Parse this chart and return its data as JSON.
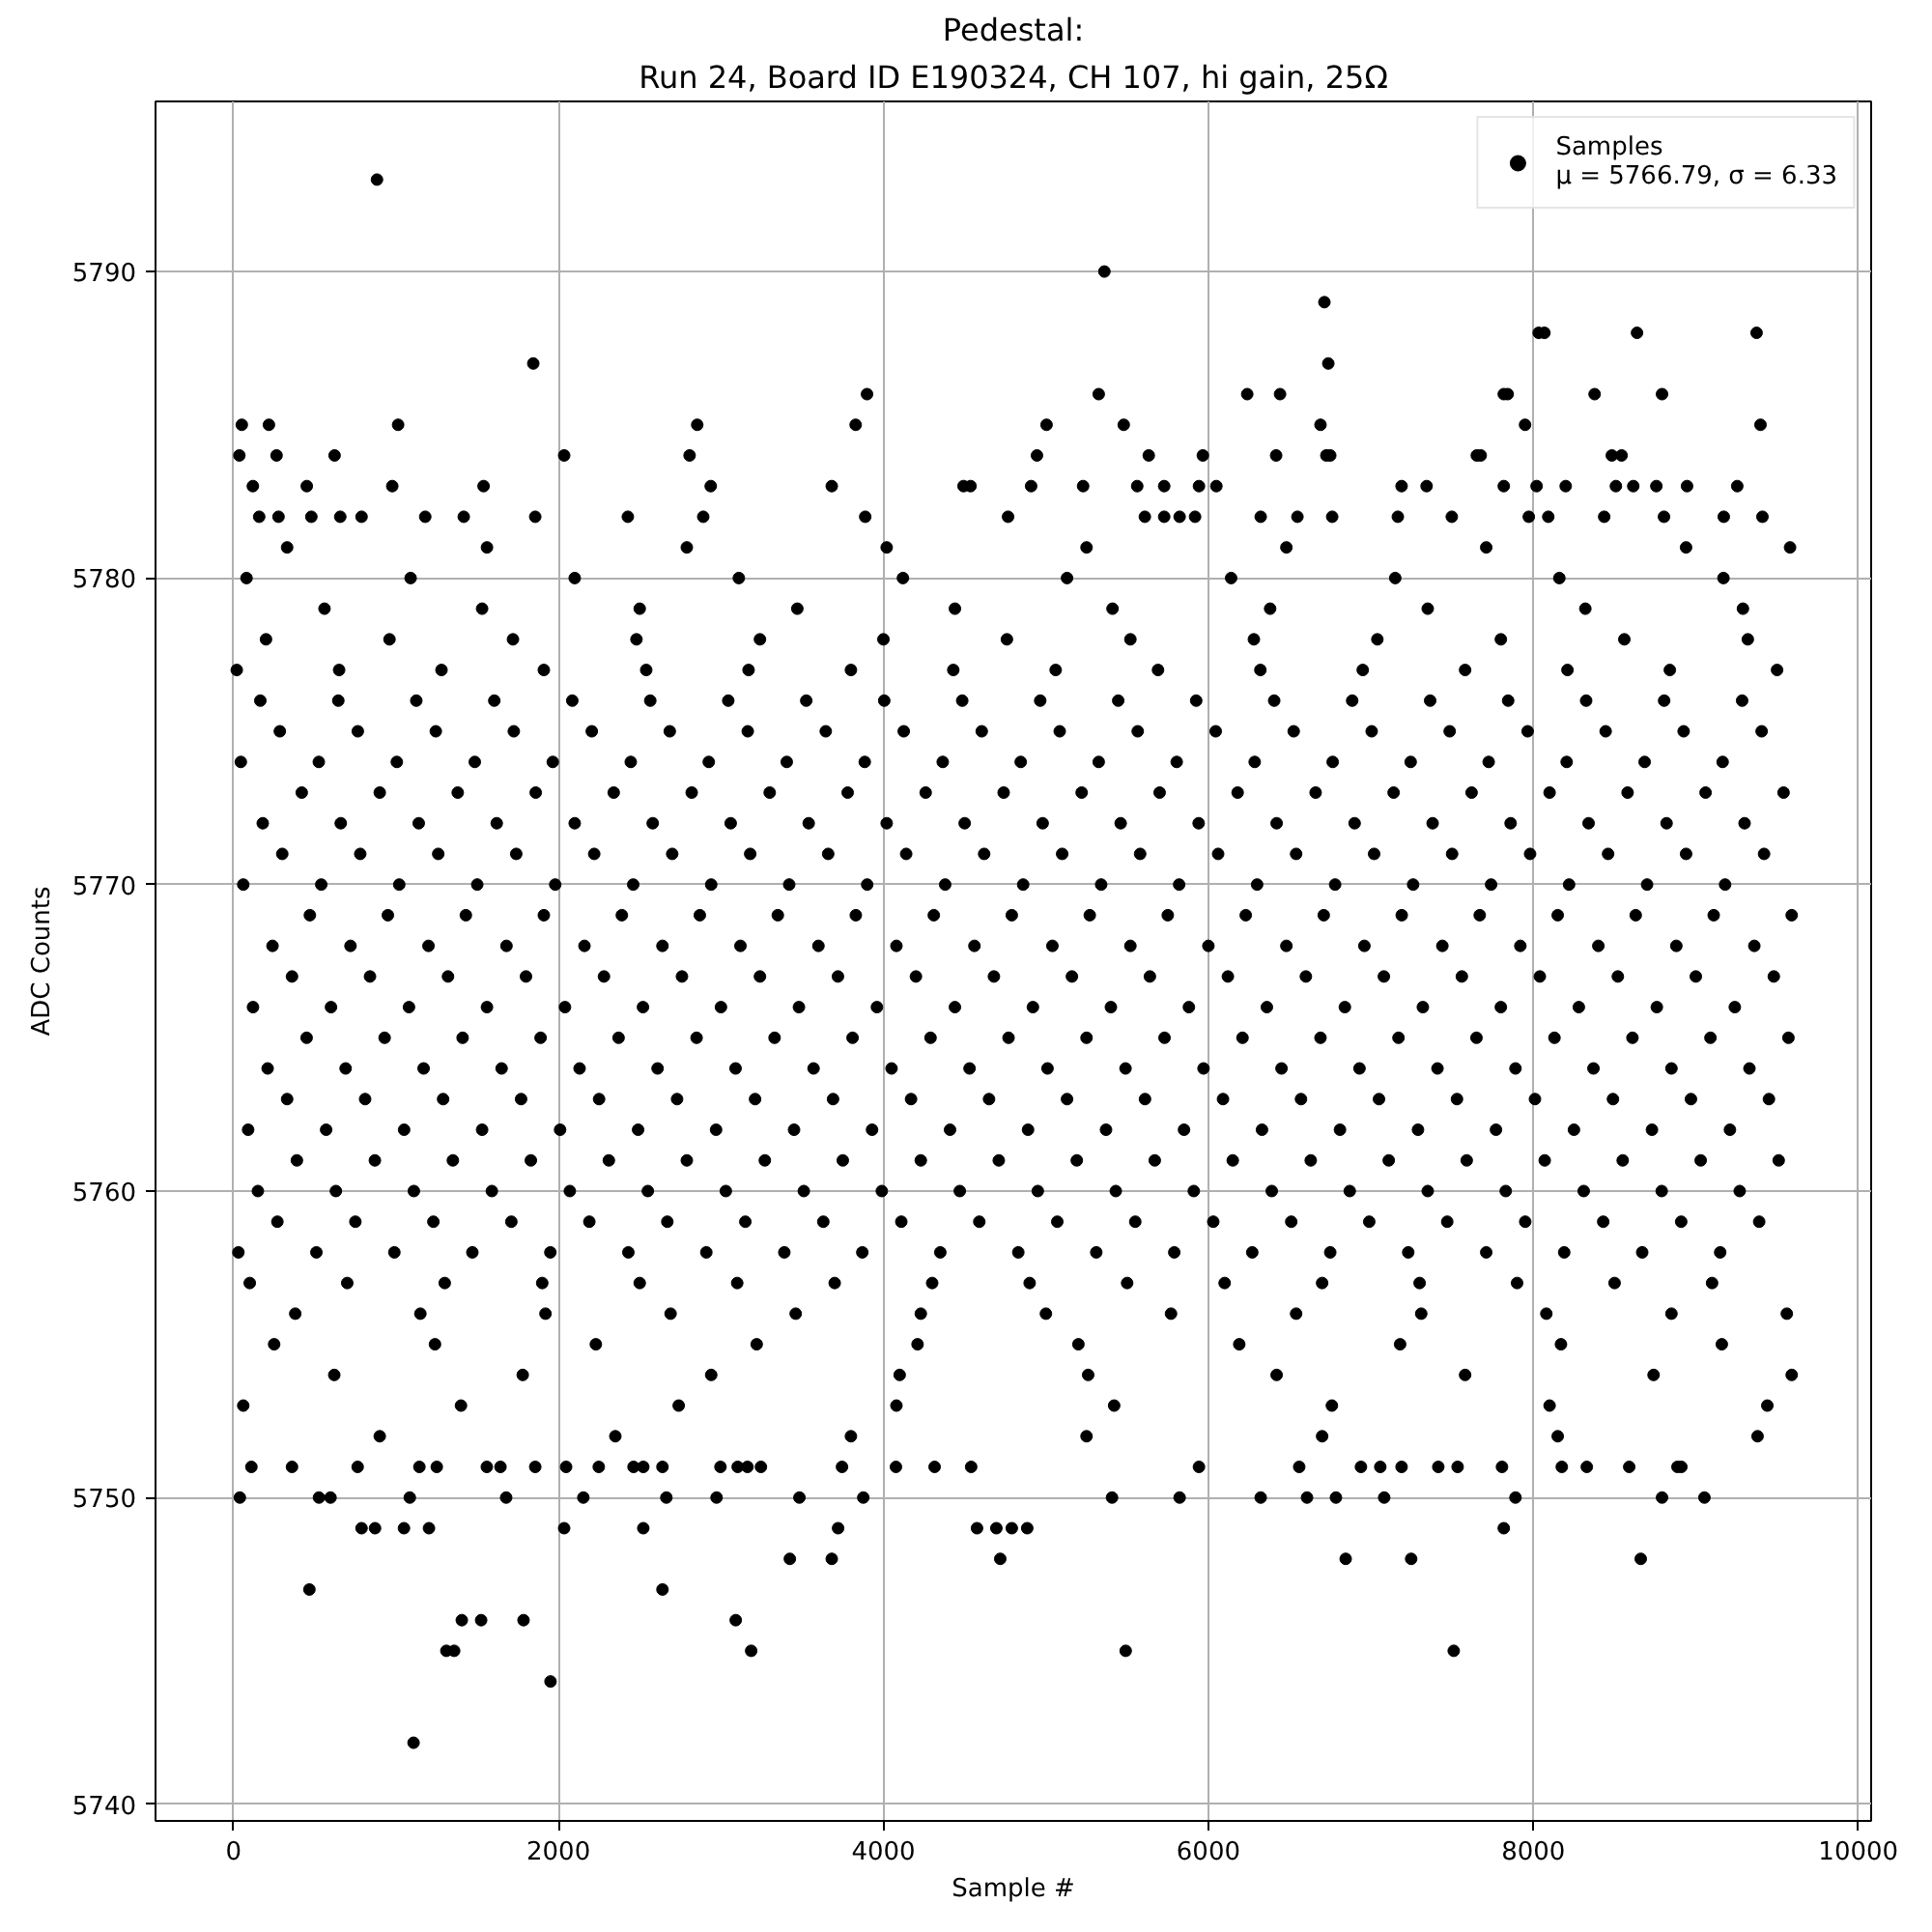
{
  "chart_data": {
    "type": "scatter",
    "title": "Pedestal:\nRun 24, Board ID E190324, CH 107, hi gain, 25Ω",
    "xlabel": "Sample #",
    "ylabel": "ADC Counts",
    "xlim": [
      -480,
      10079
    ],
    "ylim": [
      5739.45,
      5795.55
    ],
    "xticks": [
      0,
      2000,
      4000,
      6000,
      8000,
      10000
    ],
    "yticks": [
      5740,
      5750,
      5760,
      5770,
      5780,
      5790
    ],
    "grid": true,
    "legend": "top right",
    "marker": "circle",
    "series": [
      {
        "name": "Samples\nμ = 5766.79, σ = 6.33",
        "color": "#000000",
        "x": [
          883,
          5360,
          6714,
          8033,
          8068,
          8638,
          9374,
          1845,
          6738,
          3899,
          5325,
          6239,
          6441,
          7818,
          7842,
          8377,
          8792,
          51,
          218,
          1013,
          2854,
          3829,
          5004,
          5479,
          6690,
          7949,
          9398,
          36,
          265,
          622,
          2035,
          2807,
          4945,
          5633,
          5966,
          6417,
          6726,
          6750,
          7652,
          7676,
          8483,
          8543,
          119,
          451,
          977,
          1539,
          2937,
          3682,
          4493,
          4536,
          4909,
          5229,
          5562,
          5728,
          5942,
          6049,
          7189,
          7343,
          7818,
          8020,
          8199,
          8508,
          8615,
          8757,
          8946,
          9255,
          158,
          277,
          479,
          657,
          788,
          1180,
          1417,
          1857,
          2427,
          2891,
          3888,
          4767,
          5609,
          5728,
          5823,
          5918,
          6322,
          6548,
          6762,
          7166,
          7498,
          7972,
          8092,
          8436,
          8804,
          9172,
          9410,
          330,
          1560,
          2790,
          4020,
          5250,
          6480,
          7710,
          8940,
          9580,
          80,
          1090,
          2100,
          3110,
          4120,
          5130,
          6140,
          7150,
          8160,
          9170,
          560,
          1530,
          2500,
          3470,
          4440,
          5410,
          6380,
          7350,
          8320,
          9290,
          200,
          960,
          1720,
          2480,
          3240,
          4000,
          4760,
          5520,
          6280,
          7040,
          7800,
          8560,
          9320,
          20,
          650,
          1280,
          1910,
          2540,
          3170,
          3800,
          4430,
          5060,
          5690,
          6320,
          6950,
          7580,
          8210,
          8840,
          9500,
          165,
          645,
          1125,
          1605,
          2085,
          2565,
          3045,
          3525,
          4005,
          4485,
          4965,
          5445,
          5925,
          6405,
          6885,
          7365,
          7845,
          8325,
          8805,
          9285,
          285,
          765,
          1245,
          1725,
          2205,
          2685,
          3165,
          3645,
          4125,
          4605,
          5085,
          5565,
          6045,
          6525,
          7005,
          7485,
          7965,
          8445,
          8925,
          9405,
          45,
          525,
          1005,
          1485,
          1965,
          2445,
          2925,
          3405,
          3885,
          4365,
          4845,
          5325,
          5805,
          6285,
          6765,
          7245,
          7725,
          8205,
          8685,
          9165,
          420,
          900,
          1380,
          1860,
          2340,
          2820,
          3300,
          3780,
          4260,
          4740,
          5220,
          5700,
          6180,
          6660,
          7140,
          7620,
          8100,
          8580,
          9060,
          9540,
          180,
          660,
          1140,
          1620,
          2100,
          2580,
          3060,
          3540,
          4020,
          4500,
          4980,
          5460,
          5940,
          6420,
          6900,
          7380,
          7860,
          8340,
          8820,
          9300,
          300,
          780,
          1260,
          1740,
          2220,
          2700,
          3180,
          3660,
          4140,
          4620,
          5100,
          5580,
          6060,
          6540,
          7020,
          7500,
          7980,
          8460,
          8940,
          9420,
          60,
          540,
          1020,
          1500,
          1980,
          2460,
          2940,
          3420,
          3900,
          4380,
          4860,
          5340,
          5820,
          6300,
          6780,
          7260,
          7740,
          8220,
          8700,
          9180,
          470,
          950,
          1430,
          1910,
          2390,
          2870,
          3350,
          3830,
          4310,
          4790,
          5270,
          5750,
          6230,
          6710,
          7190,
          7670,
          8150,
          8630,
          9110,
          9590,
          240,
          720,
          1200,
          1680,
          2160,
          2640,
          3120,
          3600,
          4080,
          4560,
          5040,
          5520,
          6000,
          6480,
          6960,
          7440,
          7920,
          8400,
          8880,
          9360,
          360,
          840,
          1320,
          1800,
          2280,
          2760,
          3240,
          3720,
          4200,
          4680,
          5160,
          5640,
          6120,
          6600,
          7080,
          7560,
          8040,
          8520,
          9000,
          9480,
          120,
          600,
          1080,
          1560,
          2040,
          2520,
          3000,
          3480,
          3960,
          4440,
          4920,
          5400,
          5880,
          6360,
          6840,
          7320,
          7800,
          8280,
          8760,
          9240,
          450,
          930,
          1410,
          1890,
          2370,
          2850,
          3330,
          3810,
          4290,
          4770,
          5250,
          5730,
          6210,
          6690,
          7170,
          7650,
          8130,
          8610,
          9090,
          9570,
          210,
          690,
          1170,
          1650,
          2130,
          2610,
          3090,
          3570,
          4050,
          4530,
          5010,
          5490,
          5970,
          6450,
          6930,
          7410,
          7890,
          8370,
          8850,
          9330,
          330,
          810,
          1290,
          1770,
          2250,
          2730,
          3210,
          3690,
          4170,
          4650,
          5130,
          5610,
          6090,
          6570,
          7050,
          7530,
          8010,
          8490,
          8970,
          9450,
          90,
          570,
          1050,
          1530,
          2010,
          2490,
          2970,
          3450,
          3930,
          4410,
          4890,
          5370,
          5850,
          6330,
          6810,
          7290,
          7770,
          8250,
          8730,
          9210,
          390,
          870,
          1350,
          1830,
          2310,
          2790,
          3270,
          3750,
          4230,
          4710,
          5190,
          5670,
          6150,
          6630,
          7110,
          7590,
          8070,
          8550,
          9030,
          9510,
          150,
          630,
          1110,
          1590,
          2070,
          2550,
          3030,
          3510,
          3990,
          4470,
          4950,
          5430,
          5910,
          6390,
          6870,
          7350,
          7830,
          8310,
          8790,
          9270,
          270,
          750,
          1230,
          1710,
          2190,
          2670,
          3150,
          3630,
          4110,
          4590,
          5070,
          5550,
          6030,
          6510,
          6990,
          7470,
          7950,
          8430,
          8910,
          9390,
          30,
          510,
          990,
          1470,
          1950,
          2430,
          2910,
          3390,
          3870,
          4350,
          4830,
          5310,
          5790,
          6270,
          6750,
          7230,
          7710,
          8190,
          8670,
          9150,
          100,
          700,
          1300,
          1900,
          2500,
          3100,
          3700,
          4300,
          4900,
          5500,
          6100,
          6700,
          7300,
          7900,
          8500,
          9100,
          380,
          1150,
          1920,
          2690,
          3460,
          4230,
          5000,
          5770,
          6540,
          7310,
          8080,
          8850,
          9560,
          250,
          1240,
          2230,
          3220,
          4210,
          5200,
          6190,
          7180,
          8170,
          9160,
          620,
          1780,
          2940,
          4100,
          5260,
          6420,
          7580,
          8740,
          9590,
          60,
          1400,
          2740,
          4080,
          5420,
          6760,
          8100,
          9440,
          900,
          2350,
          3800,
          5250,
          6700,
          8150,
          9380,
          110,
          360,
          764,
          1144,
          1251,
          1559,
          1643,
          1857,
          2047,
          2248,
          2462,
          2522,
          2640,
          2997,
          3103,
          3163,
          3246,
          3745,
          4077,
          4315,
          4540,
          5942,
          6559,
          6939,
          7058,
          7189,
          7415,
          7534,
          7807,
          8175,
          8329,
          8590,
          8887,
          8911,
          39,
          526,
          597,
          1085,
          1678,
          2153,
          2664,
          2973,
          3483,
          3876,
          5407,
          5823,
          6322,
          6607,
          6785,
          7082,
          7890,
          8792,
          9053,
          788,
          871,
          1049,
          1203,
          2035,
          2522,
          3721,
          4576,
          4695,
          4790,
          4885,
          7818,
          3424,
          3682,
          4719,
          6845,
          7248,
          8661,
          467,
          2640,
          1405,
          1524,
          1785,
          3091,
          1310,
          1358,
          3186,
          5491,
          7510,
          1951,
          1108
        ],
        "values": [
          5793,
          5790,
          5789,
          5788,
          5788,
          5788,
          5788,
          5787,
          5787,
          5786,
          5786,
          5786,
          5786,
          5786,
          5786,
          5786,
          5786,
          5785,
          5785,
          5785,
          5785,
          5785,
          5785,
          5785,
          5785,
          5785,
          5785,
          5784,
          5784,
          5784,
          5784,
          5784,
          5784,
          5784,
          5784,
          5784,
          5784,
          5784,
          5784,
          5784,
          5784,
          5784,
          5783,
          5783,
          5783,
          5783,
          5783,
          5783,
          5783,
          5783,
          5783,
          5783,
          5783,
          5783,
          5783,
          5783,
          5783,
          5783,
          5783,
          5783,
          5783,
          5783,
          5783,
          5783,
          5783,
          5783,
          5782,
          5782,
          5782,
          5782,
          5782,
          5782,
          5782,
          5782,
          5782,
          5782,
          5782,
          5782,
          5782,
          5782,
          5782,
          5782,
          5782,
          5782,
          5782,
          5782,
          5782,
          5782,
          5782,
          5782,
          5782,
          5782,
          5782,
          5781,
          5781,
          5781,
          5781,
          5781,
          5781,
          5781,
          5781,
          5781,
          5780,
          5780,
          5780,
          5780,
          5780,
          5780,
          5780,
          5780,
          5780,
          5780,
          5779,
          5779,
          5779,
          5779,
          5779,
          5779,
          5779,
          5779,
          5779,
          5779,
          5778,
          5778,
          5778,
          5778,
          5778,
          5778,
          5778,
          5778,
          5778,
          5778,
          5778,
          5778,
          5778,
          5777,
          5777,
          5777,
          5777,
          5777,
          5777,
          5777,
          5777,
          5777,
          5777,
          5777,
          5777,
          5777,
          5777,
          5777,
          5777,
          5776,
          5776,
          5776,
          5776,
          5776,
          5776,
          5776,
          5776,
          5776,
          5776,
          5776,
          5776,
          5776,
          5776,
          5776,
          5776,
          5776,
          5776,
          5776,
          5776,
          5775,
          5775,
          5775,
          5775,
          5775,
          5775,
          5775,
          5775,
          5775,
          5775,
          5775,
          5775,
          5775,
          5775,
          5775,
          5775,
          5775,
          5775,
          5775,
          5775,
          5774,
          5774,
          5774,
          5774,
          5774,
          5774,
          5774,
          5774,
          5774,
          5774,
          5774,
          5774,
          5774,
          5774,
          5774,
          5774,
          5774,
          5774,
          5774,
          5774,
          5773,
          5773,
          5773,
          5773,
          5773,
          5773,
          5773,
          5773,
          5773,
          5773,
          5773,
          5773,
          5773,
          5773,
          5773,
          5773,
          5773,
          5773,
          5773,
          5773,
          5772,
          5772,
          5772,
          5772,
          5772,
          5772,
          5772,
          5772,
          5772,
          5772,
          5772,
          5772,
          5772,
          5772,
          5772,
          5772,
          5772,
          5772,
          5772,
          5772,
          5771,
          5771,
          5771,
          5771,
          5771,
          5771,
          5771,
          5771,
          5771,
          5771,
          5771,
          5771,
          5771,
          5771,
          5771,
          5771,
          5771,
          5771,
          5771,
          5771,
          5770,
          5770,
          5770,
          5770,
          5770,
          5770,
          5770,
          5770,
          5770,
          5770,
          5770,
          5770,
          5770,
          5770,
          5770,
          5770,
          5770,
          5770,
          5770,
          5770,
          5769,
          5769,
          5769,
          5769,
          5769,
          5769,
          5769,
          5769,
          5769,
          5769,
          5769,
          5769,
          5769,
          5769,
          5769,
          5769,
          5769,
          5769,
          5769,
          5769,
          5768,
          5768,
          5768,
          5768,
          5768,
          5768,
          5768,
          5768,
          5768,
          5768,
          5768,
          5768,
          5768,
          5768,
          5768,
          5768,
          5768,
          5768,
          5768,
          5768,
          5767,
          5767,
          5767,
          5767,
          5767,
          5767,
          5767,
          5767,
          5767,
          5767,
          5767,
          5767,
          5767,
          5767,
          5767,
          5767,
          5767,
          5767,
          5767,
          5767,
          5766,
          5766,
          5766,
          5766,
          5766,
          5766,
          5766,
          5766,
          5766,
          5766,
          5766,
          5766,
          5766,
          5766,
          5766,
          5766,
          5766,
          5766,
          5766,
          5766,
          5765,
          5765,
          5765,
          5765,
          5765,
          5765,
          5765,
          5765,
          5765,
          5765,
          5765,
          5765,
          5765,
          5765,
          5765,
          5765,
          5765,
          5765,
          5765,
          5765,
          5764,
          5764,
          5764,
          5764,
          5764,
          5764,
          5764,
          5764,
          5764,
          5764,
          5764,
          5764,
          5764,
          5764,
          5764,
          5764,
          5764,
          5764,
          5764,
          5764,
          5763,
          5763,
          5763,
          5763,
          5763,
          5763,
          5763,
          5763,
          5763,
          5763,
          5763,
          5763,
          5763,
          5763,
          5763,
          5763,
          5763,
          5763,
          5763,
          5763,
          5762,
          5762,
          5762,
          5762,
          5762,
          5762,
          5762,
          5762,
          5762,
          5762,
          5762,
          5762,
          5762,
          5762,
          5762,
          5762,
          5762,
          5762,
          5762,
          5762,
          5761,
          5761,
          5761,
          5761,
          5761,
          5761,
          5761,
          5761,
          5761,
          5761,
          5761,
          5761,
          5761,
          5761,
          5761,
          5761,
          5761,
          5761,
          5761,
          5761,
          5760,
          5760,
          5760,
          5760,
          5760,
          5760,
          5760,
          5760,
          5760,
          5760,
          5760,
          5760,
          5760,
          5760,
          5760,
          5760,
          5760,
          5760,
          5760,
          5760,
          5759,
          5759,
          5759,
          5759,
          5759,
          5759,
          5759,
          5759,
          5759,
          5759,
          5759,
          5759,
          5759,
          5759,
          5759,
          5759,
          5759,
          5759,
          5759,
          5759,
          5758,
          5758,
          5758,
          5758,
          5758,
          5758,
          5758,
          5758,
          5758,
          5758,
          5758,
          5758,
          5758,
          5758,
          5758,
          5758,
          5758,
          5758,
          5758,
          5758,
          5757,
          5757,
          5757,
          5757,
          5757,
          5757,
          5757,
          5757,
          5757,
          5757,
          5757,
          5757,
          5757,
          5757,
          5757,
          5757,
          5756,
          5756,
          5756,
          5756,
          5756,
          5756,
          5756,
          5756,
          5756,
          5756,
          5756,
          5756,
          5756,
          5755,
          5755,
          5755,
          5755,
          5755,
          5755,
          5755,
          5755,
          5755,
          5755,
          5754,
          5754,
          5754,
          5754,
          5754,
          5754,
          5754,
          5754,
          5754,
          5753,
          5753,
          5753,
          5753,
          5753,
          5753,
          5753,
          5753,
          5752,
          5752,
          5752,
          5752,
          5752,
          5752,
          5752,
          5751,
          5751,
          5751,
          5751,
          5751,
          5751,
          5751,
          5751,
          5751,
          5751,
          5751,
          5751,
          5751,
          5751,
          5751,
          5751,
          5751,
          5751,
          5751,
          5751,
          5751,
          5751,
          5751,
          5751,
          5751,
          5751,
          5751,
          5751,
          5751,
          5751,
          5751,
          5751,
          5751,
          5751,
          5750,
          5750,
          5750,
          5750,
          5750,
          5750,
          5750,
          5750,
          5750,
          5750,
          5750,
          5750,
          5750,
          5750,
          5750,
          5750,
          5750,
          5750,
          5750,
          5749,
          5749,
          5749,
          5749,
          5749,
          5749,
          5749,
          5749,
          5749,
          5749,
          5749,
          5749,
          5748,
          5748,
          5748,
          5748,
          5748,
          5748,
          5747,
          5747,
          5746,
          5746,
          5746,
          5746,
          5745,
          5745,
          5745,
          5745,
          5745,
          5744,
          5742
        ]
      }
    ]
  }
}
